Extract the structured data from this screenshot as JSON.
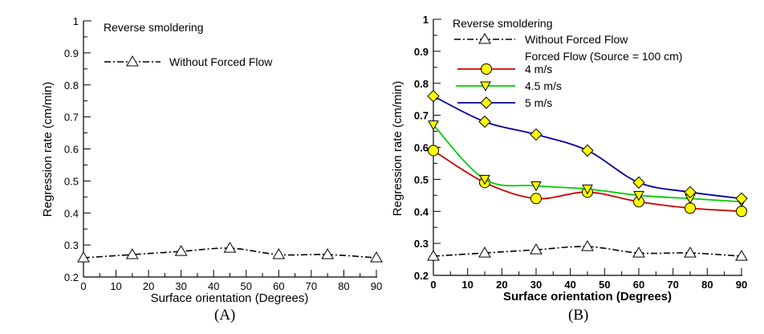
{
  "chart_data": [
    {
      "type": "line",
      "panel_label": "(A)",
      "annotation": "Reverse smoldering",
      "xlabel": "Surface orientation (Degrees)",
      "ylabel": "Regression rate (cm/min)",
      "xlim": [
        0,
        90
      ],
      "ylim": [
        0.2,
        1.0
      ],
      "x_ticks": [
        0,
        10,
        20,
        30,
        40,
        50,
        60,
        70,
        80,
        90
      ],
      "y_ticks": [
        0.2,
        0.3,
        0.4,
        0.5,
        0.6,
        0.7,
        0.8,
        0.9,
        1
      ],
      "y_tick_labels": [
        "0.2",
        "0.3",
        "0.4",
        "0.5",
        "0.6",
        "0.7",
        "0.8",
        "0.9",
        "1"
      ],
      "grid": false,
      "legend_position": "top-left",
      "x": [
        0,
        15,
        30,
        45,
        60,
        75,
        90
      ],
      "series": [
        {
          "name": "Without Forced Flow",
          "color": "#000000",
          "style": "dash-dot",
          "marker": "triangle-up-open",
          "values": [
            0.26,
            0.27,
            0.28,
            0.29,
            0.27,
            0.27,
            0.26
          ]
        }
      ]
    },
    {
      "type": "line",
      "panel_label": "(B)",
      "annotation": "Reverse smoldering",
      "legend_subheading": "Forced Flow (Source = 100 cm)",
      "xlabel": "Surface orientation (Degrees)",
      "ylabel": "Regression rate (cm/min)",
      "xlim": [
        0,
        90
      ],
      "ylim": [
        0.2,
        1.0
      ],
      "x_ticks": [
        0,
        10,
        20,
        30,
        40,
        50,
        60,
        70,
        80,
        90
      ],
      "y_ticks": [
        0.2,
        0.3,
        0.4,
        0.5,
        0.6,
        0.7,
        0.8,
        0.9,
        1
      ],
      "y_tick_labels": [
        "0.2",
        "0.3",
        "0.4",
        "0.5",
        "0.6",
        "0.7",
        "0.8",
        "0.9",
        "1"
      ],
      "grid": false,
      "legend_position": "top-left",
      "x": [
        0,
        15,
        30,
        45,
        60,
        75,
        90
      ],
      "series": [
        {
          "name": "Without Forced Flow",
          "color": "#000000",
          "style": "dash-dot",
          "marker": "triangle-up-open",
          "values": [
            0.26,
            0.27,
            0.28,
            0.29,
            0.27,
            0.27,
            0.26
          ]
        },
        {
          "name": "4 m/s",
          "color": "#cc0000",
          "style": "solid",
          "marker": "circle-yellow",
          "values": [
            0.59,
            0.49,
            0.44,
            0.46,
            0.43,
            0.41,
            0.4
          ]
        },
        {
          "name": "4.5 m/s",
          "color": "#00cc00",
          "style": "solid",
          "marker": "triangle-down-yellow",
          "values": [
            0.67,
            0.5,
            0.48,
            0.47,
            0.45,
            0.44,
            0.43
          ]
        },
        {
          "name": "5 m/s",
          "color": "#000099",
          "style": "solid",
          "marker": "diamond-yellow",
          "values": [
            0.76,
            0.68,
            0.64,
            0.59,
            0.49,
            0.46,
            0.44
          ]
        }
      ]
    }
  ],
  "marker_fill": "#ffff00"
}
